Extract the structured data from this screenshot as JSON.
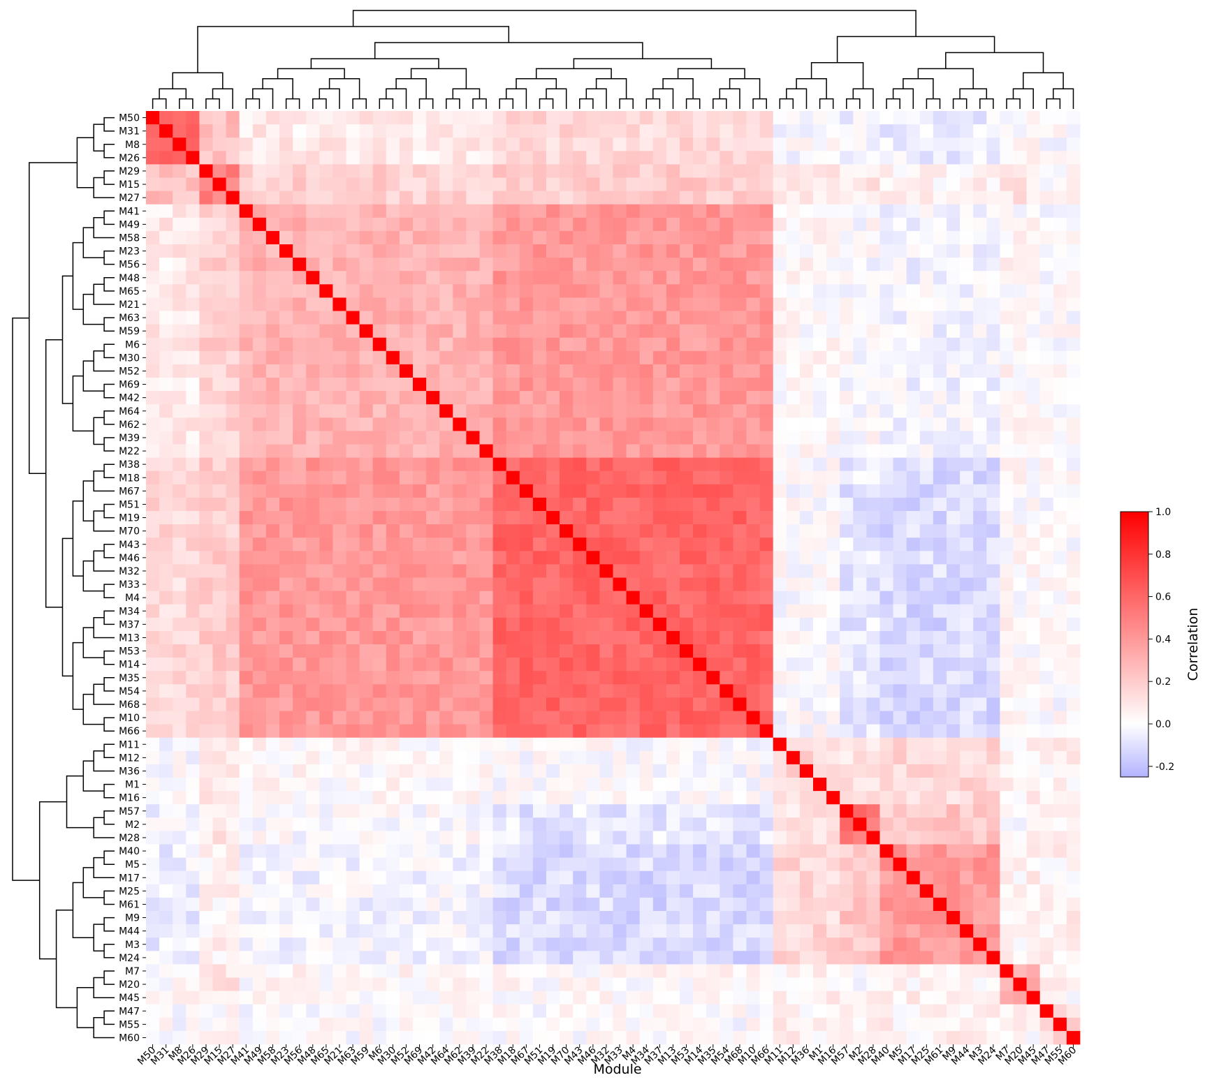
{
  "chart_data": {
    "type": "heatmap",
    "title": "",
    "xlabel": "Module",
    "ylabel": "",
    "order": [
      "M50",
      "M31",
      "M8",
      "M26",
      "M29",
      "M15",
      "M27",
      "M41",
      "M49",
      "M58",
      "M23",
      "M56",
      "M48",
      "M65",
      "M21",
      "M63",
      "M59",
      "M6",
      "M30",
      "M52",
      "M69",
      "M42",
      "M64",
      "M62",
      "M39",
      "M22",
      "M38",
      "M18",
      "M67",
      "M51",
      "M19",
      "M70",
      "M43",
      "M46",
      "M32",
      "M33",
      "M4",
      "M34",
      "M37",
      "M13",
      "M53",
      "M14",
      "M35",
      "M54",
      "M68",
      "M10",
      "M66",
      "M11",
      "M12",
      "M36",
      "M1",
      "M16",
      "M57",
      "M2",
      "M28",
      "M40",
      "M5",
      "M17",
      "M25",
      "M61",
      "M9",
      "M44",
      "M3",
      "M24",
      "M7",
      "M20",
      "M45",
      "M47",
      "M55",
      "M60"
    ],
    "value_description": "Symmetric correlation matrix between modules; diagonal = 1.0. Off-diagonal values are estimated from color by cluster blocks.",
    "groups": [
      {
        "members": [
          "M50",
          "M31",
          "M8",
          "M26"
        ],
        "within": 0.65
      },
      {
        "members": [
          "M29",
          "M15",
          "M27"
        ],
        "within": 0.5
      },
      {
        "members": [
          "M41",
          "M49",
          "M58",
          "M23",
          "M56",
          "M48",
          "M65",
          "M21",
          "M63",
          "M59",
          "M6",
          "M30",
          "M52",
          "M69",
          "M42",
          "M64",
          "M62",
          "M39",
          "M22"
        ],
        "within": 0.3
      },
      {
        "members": [
          "M38",
          "M18",
          "M67",
          "M51",
          "M19",
          "M70",
          "M43",
          "M46",
          "M32",
          "M33",
          "M4",
          "M34",
          "M37",
          "M13",
          "M53",
          "M14",
          "M35",
          "M54",
          "M68",
          "M10",
          "M66"
        ],
        "within": 0.6
      },
      {
        "members": [
          "M11",
          "M12",
          "M36",
          "M1",
          "M16"
        ],
        "within": 0.15
      },
      {
        "members": [
          "M57",
          "M2",
          "M28"
        ],
        "within": 0.55
      },
      {
        "members": [
          "M40",
          "M5",
          "M17",
          "M25",
          "M61",
          "M9",
          "M44",
          "M3",
          "M24"
        ],
        "within": 0.4
      },
      {
        "members": [
          "M7",
          "M20",
          "M45"
        ],
        "within": 0.35
      },
      {
        "members": [
          "M47",
          "M55",
          "M60"
        ],
        "within": 0.15
      }
    ],
    "between_groups": [
      [
        1.0,
        0.25,
        0.08,
        0.15,
        0.0,
        -0.03,
        -0.05,
        0.02,
        0.0
      ],
      [
        0.25,
        1.0,
        0.18,
        0.2,
        0.08,
        0.1,
        0.05,
        0.1,
        0.02
      ],
      [
        0.08,
        0.18,
        1.0,
        0.4,
        0.02,
        0.0,
        -0.03,
        0.02,
        0.0
      ],
      [
        0.15,
        0.2,
        0.4,
        1.0,
        0.0,
        -0.08,
        -0.12,
        0.02,
        0.0
      ],
      [
        0.0,
        0.08,
        0.02,
        0.0,
        1.0,
        0.12,
        0.15,
        0.05,
        0.05
      ],
      [
        -0.03,
        0.1,
        0.0,
        -0.08,
        0.12,
        1.0,
        0.22,
        0.02,
        0.02
      ],
      [
        -0.05,
        0.05,
        -0.03,
        -0.12,
        0.15,
        0.22,
        1.0,
        0.05,
        0.05
      ],
      [
        0.02,
        0.1,
        0.02,
        0.02,
        0.05,
        0.02,
        0.05,
        1.0,
        0.03
      ],
      [
        0.0,
        0.02,
        0.0,
        0.0,
        0.05,
        0.02,
        0.05,
        0.03,
        1.0
      ]
    ],
    "colorbar": {
      "label": "Correlation",
      "vmin": -0.25,
      "vmax": 1.0,
      "center": 0.0,
      "ticks": [
        "-0.2",
        "0.0",
        "0.2",
        "0.4",
        "0.6",
        "0.8",
        "1.0"
      ],
      "colors": {
        "low": "#b3b3ff",
        "mid": "#ffffff",
        "high": "#ff0000"
      }
    },
    "dendrogram": "both",
    "grid": false
  }
}
